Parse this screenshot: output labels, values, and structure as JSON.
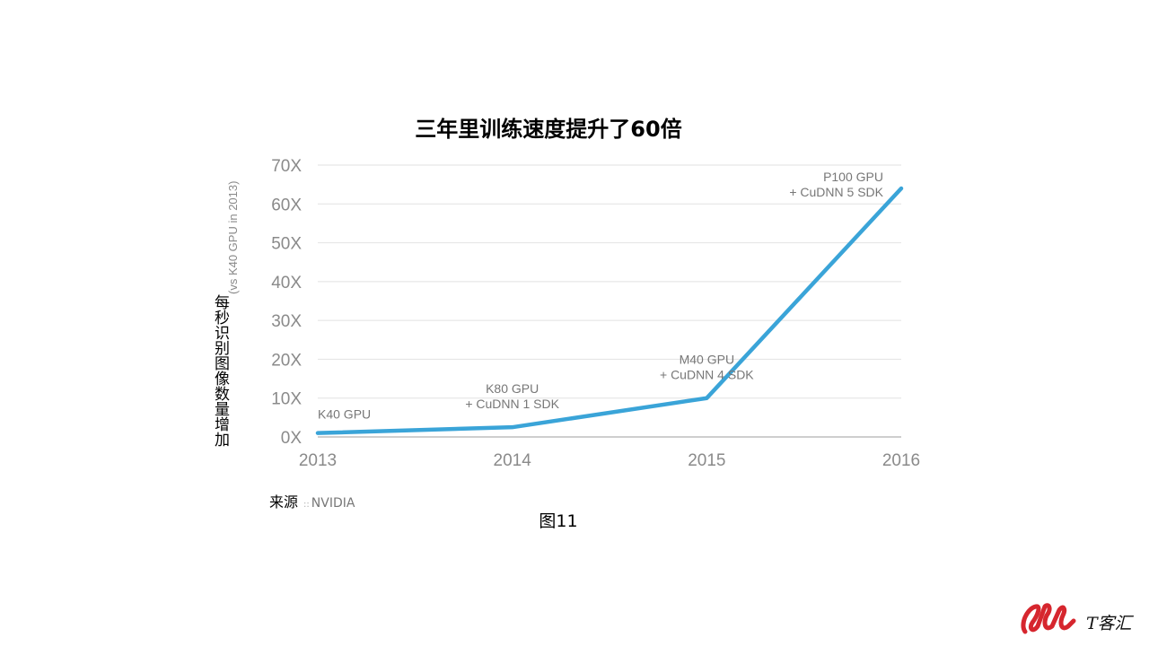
{
  "chart_data": {
    "type": "line",
    "title": "三年里训练速度提升了60倍",
    "ylabel": "每秒识别图像数量增加",
    "ylabel_sub": "(vs K40 GPU in 2013)",
    "x": [
      "2013",
      "2014",
      "2015",
      "2016"
    ],
    "y": [
      1,
      2.5,
      10,
      64
    ],
    "ylim": [
      0,
      70
    ],
    "yticks": [
      "0X",
      "10X",
      "20X",
      "30X",
      "40X",
      "50X",
      "60X",
      "70X"
    ],
    "grid": true,
    "line_color": "#3aa4d8",
    "annotations": [
      {
        "lines": [
          "K40 GPU"
        ]
      },
      {
        "lines": [
          "K80 GPU",
          "+ CuDNN 1 SDK"
        ]
      },
      {
        "lines": [
          "M40 GPU",
          "+ CuDNN 4 SDK"
        ]
      },
      {
        "lines": [
          "P100 GPU",
          "+ CuDNN 5 SDK"
        ]
      }
    ]
  },
  "source": {
    "label": "来源",
    "separator": "::",
    "value": "NVIDIA"
  },
  "caption": "图11",
  "logo": {
    "text": "T客汇",
    "color": "#d6262e"
  }
}
